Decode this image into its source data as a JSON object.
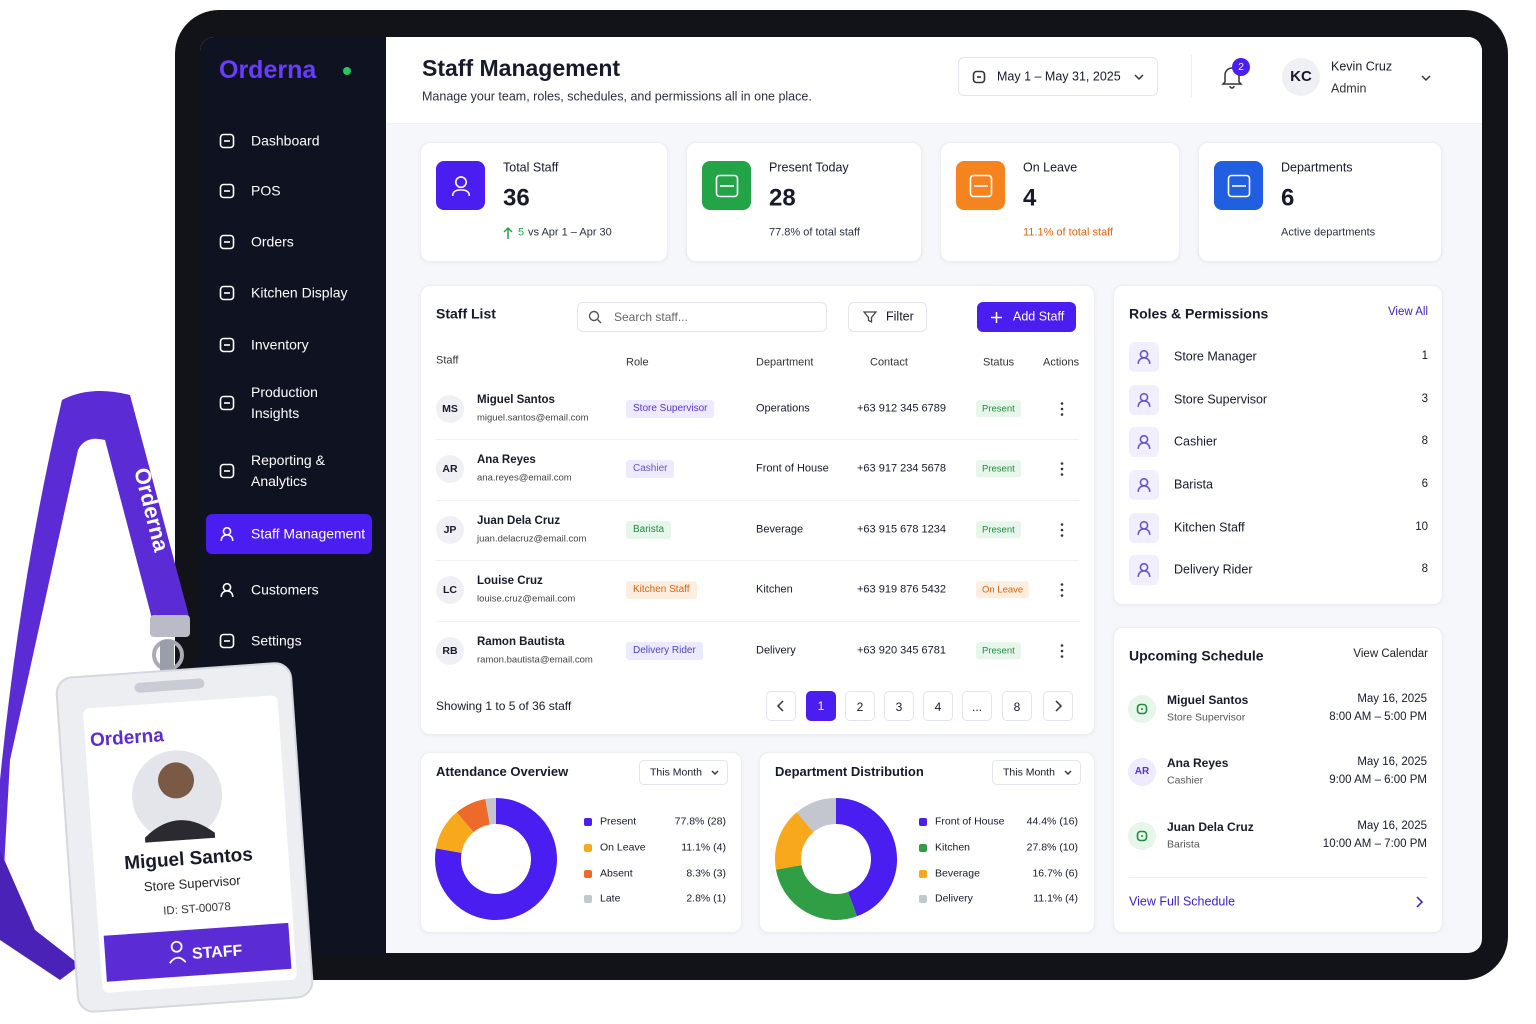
{
  "sidebar": {
    "brand": "Orderna",
    "nav": [
      "Dashboard",
      "POS",
      "Orders",
      "Kitchen Display",
      "Inventory",
      "Production Insights",
      "Reporting & Analytics",
      "Staff Management",
      "Customers",
      "Settings"
    ]
  },
  "header": {
    "title": "Staff Management",
    "subtitle": "Manage your team, roles, schedules, and permissions all in one place.",
    "date_range": "May 1 – May 31, 2025",
    "notifications": 2,
    "user_initials": "KC",
    "user_name": "Kevin Cruz",
    "user_role": "Admin"
  },
  "stats": [
    {
      "label": "Total Staff",
      "value": 36,
      "change": 5,
      "note": "vs Apr 1 – Apr 30"
    },
    {
      "label": "Present Today",
      "value": 28,
      "note": "77.8% of total staff"
    },
    {
      "label": "On Leave",
      "value": 4,
      "note": "11.1% of total staff"
    },
    {
      "label": "Departments",
      "value": 6,
      "note": "Active departments"
    }
  ],
  "staff_list": {
    "title": "Staff List",
    "search_placeholder": "Search staff...",
    "filter": "Filter",
    "add": "Add Staff",
    "columns": [
      "Staff",
      "Role",
      "Department",
      "Contact",
      "Status",
      "Actions"
    ],
    "rows": [
      {
        "initials": "MS",
        "name": "Miguel Santos",
        "email": "miguel.santos@email.com",
        "role": "Store Supervisor",
        "department": "Operations",
        "contact": "+63 912 345 6789",
        "status": "Present"
      },
      {
        "initials": "AR",
        "name": "Ana Reyes",
        "email": "ana.reyes@email.com",
        "role": "Cashier",
        "department": "Front of House",
        "contact": "+63 917 234 5678",
        "status": "Present"
      },
      {
        "initials": "JP",
        "name": "Juan Dela Cruz",
        "email": "juan.delacruz@email.com",
        "role": "Barista",
        "department": "Beverage",
        "contact": "+63 915 678 1234",
        "status": "Present"
      },
      {
        "initials": "LC",
        "name": "Louise Cruz",
        "email": "louise.cruz@email.com",
        "role": "Kitchen Staff",
        "department": "Kitchen",
        "contact": "+63 919 876 5432",
        "status": "On Leave"
      },
      {
        "initials": "RB",
        "name": "Ramon Bautista",
        "email": "ramon.bautista@email.com",
        "role": "Delivery Rider",
        "department": "Delivery",
        "contact": "+63 920 345 6781",
        "status": "Present"
      }
    ],
    "footer": "Showing 1 to 5 of 36 staff",
    "pages": [
      1,
      2,
      3,
      4,
      "...",
      8
    ]
  },
  "roles": {
    "title": "Roles & Permissions",
    "view_all": "View All",
    "items": [
      {
        "name": "Store Manager",
        "count": 1
      },
      {
        "name": "Store Supervisor",
        "count": 3
      },
      {
        "name": "Cashier",
        "count": 8
      },
      {
        "name": "Barista",
        "count": 6
      },
      {
        "name": "Kitchen Staff",
        "count": 10
      },
      {
        "name": "Delivery Rider",
        "count": 8
      }
    ]
  },
  "schedule": {
    "title": "Upcoming Schedule",
    "view": "View Calendar",
    "items": [
      {
        "name": "Miguel Santos",
        "role": "Store Supervisor",
        "date": "May 16, 2025",
        "time": "8:00 AM – 5:00 PM"
      },
      {
        "initials": "AR",
        "name": "Ana Reyes",
        "role": "Cashier",
        "date": "May 16, 2025",
        "time": "9:00 AM – 6:00 PM"
      },
      {
        "name": "Juan Dela Cruz",
        "role": "Barista",
        "date": "May 16, 2025",
        "time": "10:00 AM – 7:00 PM"
      }
    ],
    "link": "View Full Schedule"
  },
  "attendance_chart": {
    "type": "pie",
    "title": "Attendance Overview",
    "period": "This Month",
    "categories": [
      "Present",
      "On Leave",
      "Absent",
      "Late"
    ],
    "values": [
      77.8,
      11.1,
      8.3,
      2.8
    ],
    "value_labels": [
      "77.8% (28)",
      "11.1% (4)",
      "8.3% (3)",
      "2.8% (1)"
    ],
    "colors": [
      "#4a1df0",
      "#f7a81b",
      "#ee6a2b",
      "#c3c5cf"
    ]
  },
  "department_chart": {
    "type": "pie",
    "title": "Department Distribution",
    "period": "This Month",
    "categories": [
      "Front of House",
      "Kitchen",
      "Beverage",
      "Delivery"
    ],
    "values": [
      44.4,
      27.8,
      16.7,
      11.1
    ],
    "value_labels": [
      "44.4% (16)",
      "27.8% (10)",
      "16.7% (6)",
      "11.1% (4)"
    ],
    "colors": [
      "#4a1df0",
      "#2f9e44",
      "#f7a81b",
      "#c3c5cf"
    ]
  },
  "badge": {
    "lanyard": "Orderna",
    "brand": "Orderna",
    "name": "Miguel Santos",
    "role": "Store Supervisor",
    "id": "ID: ST-00078",
    "tag": "STAFF"
  }
}
